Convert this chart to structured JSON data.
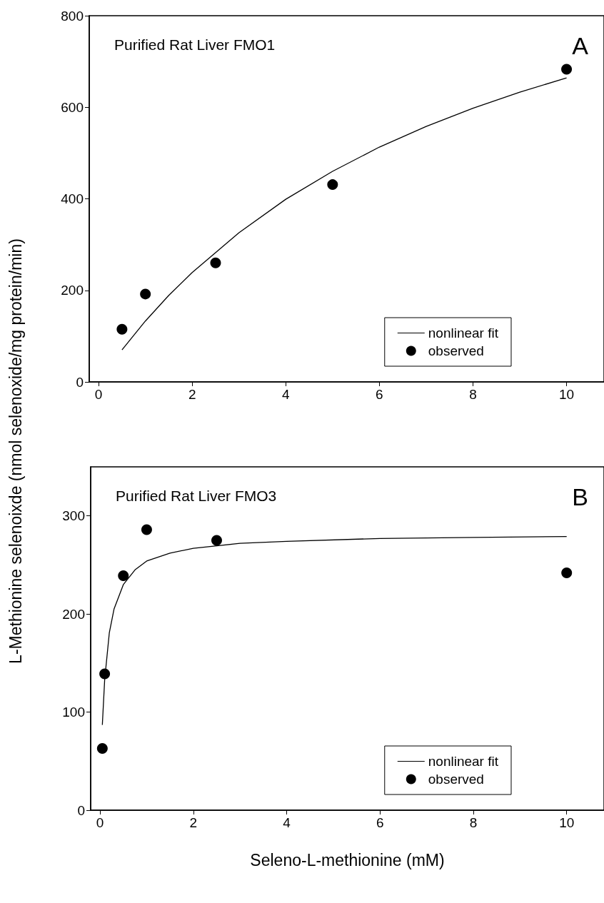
{
  "chart_data": [
    {
      "type": "scatter",
      "title": "Purified Rat Liver FMO1",
      "ylabel": "L-Methionine selenoixde (nmol selenoxide/mg protein/min)",
      "annotations": [
        "A"
      ],
      "xlim": [
        -0.2,
        10.8
      ],
      "xticks": [
        0,
        2,
        4,
        6,
        8,
        10
      ],
      "ylim": [
        0,
        800
      ],
      "yticks": [
        0,
        200,
        400,
        600,
        800
      ],
      "legend": "bottom right",
      "grid": false,
      "marker": "circle",
      "series": [
        {
          "name": "nonlinear fit",
          "type": "line",
          "color": "#000000",
          "marker": "none",
          "x": [
            0.5,
            1,
            1.5,
            2,
            3,
            4,
            5,
            6,
            7,
            8,
            9,
            10
          ],
          "values": [
            70,
            133,
            189,
            239,
            326,
            399,
            460,
            513,
            558,
            598,
            633,
            664
          ]
        },
        {
          "name": "observed",
          "color": "#000000",
          "x": [
            0.5,
            1,
            2.5,
            5,
            10
          ],
          "values": [
            115,
            192,
            260,
            431,
            683
          ]
        }
      ]
    },
    {
      "type": "scatter",
      "title": "Purified Rat Liver FMO3",
      "xlabel": "Seleno-L-methionine (mM)",
      "annotations": [
        "B"
      ],
      "xlim": [
        -0.2,
        10.8
      ],
      "xticks": [
        0,
        2,
        4,
        6,
        8,
        10
      ],
      "ylim": [
        0,
        350
      ],
      "yticks": [
        0,
        100,
        200,
        300
      ],
      "legend": "bottom right",
      "grid": false,
      "marker": "circle",
      "series": [
        {
          "name": "nonlinear fit",
          "type": "line",
          "color": "#000000",
          "marker": "none",
          "x": [
            0.05,
            0.1,
            0.2,
            0.3,
            0.5,
            0.75,
            1,
            1.5,
            2,
            3,
            4,
            6,
            8,
            10
          ],
          "values": [
            87,
            133,
            181,
            205,
            230,
            245,
            254,
            262,
            267,
            272,
            274,
            277,
            278,
            279
          ]
        },
        {
          "name": "observed",
          "color": "#000000",
          "x": [
            0.05,
            0.1,
            0.5,
            1,
            2.5,
            10
          ],
          "values": [
            63,
            139,
            239,
            286,
            275,
            242
          ]
        }
      ]
    }
  ]
}
